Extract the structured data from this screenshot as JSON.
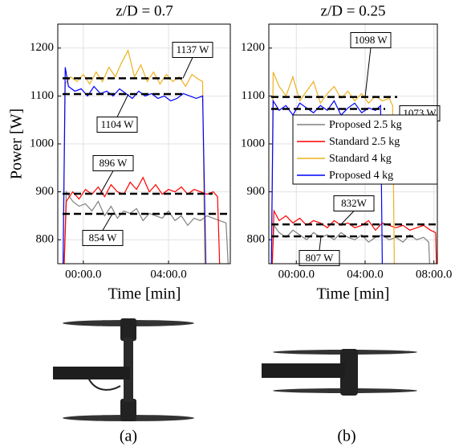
{
  "chart_data": [
    {
      "type": "line",
      "title": "z/D = 0.7",
      "x_label": "Time [min]",
      "y_label": "Power [W]",
      "xlim": [
        -1.2,
        6.9
      ],
      "xticks": [
        {
          "value": 0,
          "label": "00:00.0"
        },
        {
          "value": 4,
          "label": "04:00.0"
        }
      ],
      "ylim": [
        750,
        1250
      ],
      "yticks": [
        800,
        900,
        1000,
        1100,
        1200
      ],
      "grid": true,
      "series": [
        {
          "name": "Proposed 2.5 kg",
          "color": "#808080",
          "x": [
            -0.9,
            -0.8,
            -0.5,
            -0.2,
            0.1,
            0.4,
            0.7,
            1.0,
            1.3,
            1.6,
            1.9,
            2.2,
            2.5,
            2.8,
            3.1,
            3.4,
            3.7,
            4.0,
            4.3,
            4.6,
            4.9,
            5.2,
            5.5,
            5.8,
            6.1,
            6.4,
            6.7,
            6.8
          ],
          "values": [
            750,
            900,
            880,
            870,
            875,
            860,
            880,
            850,
            870,
            845,
            860,
            855,
            865,
            840,
            855,
            850,
            845,
            860,
            840,
            850,
            830,
            845,
            840,
            850,
            845,
            840,
            835,
            750
          ]
        },
        {
          "name": "Standard 2.5 kg",
          "color": "#ff0000",
          "x": [
            -0.9,
            -0.8,
            -0.5,
            -0.2,
            0.1,
            0.4,
            0.7,
            1.0,
            1.3,
            1.6,
            1.9,
            2.2,
            2.5,
            2.8,
            3.1,
            3.4,
            3.7,
            4.0,
            4.3,
            4.6,
            4.9,
            5.2,
            5.5,
            5.8,
            6.1,
            6.3,
            6.4
          ],
          "values": [
            750,
            880,
            900,
            885,
            905,
            895,
            910,
            890,
            915,
            900,
            895,
            920,
            905,
            930,
            900,
            915,
            895,
            905,
            900,
            910,
            895,
            905,
            900,
            895,
            900,
            890,
            750
          ]
        },
        {
          "name": "Standard 4 kg",
          "color": "#edb120",
          "x": [
            -0.95,
            -0.85,
            -0.6,
            -0.3,
            0,
            0.3,
            0.6,
            0.9,
            1.2,
            1.5,
            1.8,
            2.1,
            2.4,
            2.7,
            3.0,
            3.3,
            3.6,
            3.9,
            4.2,
            4.5,
            4.8,
            5.1,
            5.4,
            5.6,
            5.7
          ],
          "values": [
            750,
            1125,
            1140,
            1130,
            1145,
            1125,
            1150,
            1130,
            1160,
            1140,
            1170,
            1195,
            1140,
            1165,
            1130,
            1150,
            1125,
            1145,
            1130,
            1140,
            1120,
            1145,
            1135,
            1130,
            750
          ]
        },
        {
          "name": "Proposed 4 kg",
          "color": "#0000ff",
          "x": [
            -0.95,
            -0.85,
            -0.7,
            -0.4,
            -0.1,
            0.2,
            0.5,
            0.8,
            1.1,
            1.4,
            1.7,
            2.0,
            2.3,
            2.6,
            2.9,
            3.2,
            3.5,
            3.8,
            4.1,
            4.4,
            4.7,
            5.0,
            5.3,
            5.6,
            5.75
          ],
          "values": [
            750,
            1160,
            1120,
            1110,
            1115,
            1100,
            1120,
            1105,
            1110,
            1100,
            1115,
            1105,
            1095,
            1110,
            1100,
            1105,
            1095,
            1100,
            1090,
            1095,
            1105,
            1100,
            1095,
            1100,
            750
          ]
        }
      ],
      "annotations": [
        {
          "text": "1137 W",
          "value": 1137
        },
        {
          "text": "1104 W",
          "value": 1104
        },
        {
          "text": "896 W",
          "value": 896
        },
        {
          "text": "854 W",
          "value": 854
        }
      ]
    },
    {
      "type": "line",
      "title": "z/D = 0.25",
      "x_label": "Time [min]",
      "xlim": [
        -1.6,
        8.2
      ],
      "xticks": [
        {
          "value": 0,
          "label": "00:00.0"
        },
        {
          "value": 4,
          "label": "04:00.0"
        },
        {
          "value": 8,
          "label": "08:00.0"
        }
      ],
      "ylim": [
        750,
        1250
      ],
      "yticks": [
        800,
        900,
        1000,
        1100,
        1200
      ],
      "grid": true,
      "legend": "center right",
      "series": [
        {
          "name": "Proposed 2.5 kg",
          "color": "#808080",
          "x": [
            -1.4,
            -1.3,
            -1.0,
            -0.6,
            -0.2,
            0.2,
            0.6,
            1.0,
            1.4,
            1.8,
            2.2,
            2.6,
            3.0,
            3.4,
            3.8,
            4.2,
            4.6,
            5.0,
            5.4,
            5.8,
            6.2,
            6.6,
            7.0,
            7.4,
            7.7,
            7.75
          ],
          "values": [
            750,
            830,
            815,
            805,
            820,
            810,
            800,
            815,
            805,
            810,
            800,
            815,
            805,
            800,
            810,
            795,
            805,
            810,
            800,
            805,
            795,
            810,
            800,
            805,
            795,
            750
          ]
        },
        {
          "name": "Standard 2.5 kg",
          "color": "#ff0000",
          "x": [
            -1.4,
            -1.3,
            -1.0,
            -0.6,
            -0.2,
            0.2,
            0.6,
            1.0,
            1.4,
            1.8,
            2.2,
            2.6,
            3.0,
            3.4,
            3.8,
            4.2,
            4.6,
            5.0,
            5.4,
            5.8,
            6.2,
            6.6,
            7.0,
            7.4,
            7.8,
            8.1,
            8.15
          ],
          "values": [
            750,
            860,
            840,
            850,
            835,
            845,
            830,
            840,
            835,
            825,
            840,
            830,
            835,
            825,
            830,
            840,
            820,
            835,
            830,
            825,
            830,
            820,
            825,
            830,
            820,
            815,
            750
          ]
        },
        {
          "name": "Standard 4 kg",
          "color": "#edb120",
          "x": [
            -1.45,
            -1.35,
            -1.0,
            -0.6,
            -0.2,
            0.2,
            0.6,
            1.0,
            1.4,
            1.8,
            2.2,
            2.6,
            3.0,
            3.4,
            3.8,
            4.2,
            4.6,
            5.0,
            5.4,
            5.6,
            5.7
          ],
          "values": [
            750,
            1150,
            1120,
            1100,
            1140,
            1090,
            1110,
            1130,
            1085,
            1105,
            1120,
            1095,
            1110,
            1090,
            1105,
            1085,
            1100,
            1090,
            1095,
            1080,
            750
          ]
        },
        {
          "name": "Proposed 4 kg",
          "color": "#0000ff",
          "x": [
            -1.45,
            -1.35,
            -1.0,
            -0.6,
            -0.2,
            0.2,
            0.6,
            1.0,
            1.4,
            1.8,
            2.2,
            2.6,
            3.0,
            3.4,
            3.8,
            4.2,
            4.6,
            4.9,
            5.0
          ],
          "values": [
            750,
            1090,
            1070,
            1080,
            1060,
            1085,
            1075,
            1065,
            1080,
            1070,
            1090,
            1060,
            1075,
            1085,
            1065,
            1075,
            1070,
            1080,
            750
          ]
        }
      ],
      "annotations": [
        {
          "text": "1098 W",
          "value": 1098
        },
        {
          "text": "1073 W",
          "value": 1073
        },
        {
          "text": "832W",
          "value": 832
        },
        {
          "text": "807 W",
          "value": 807
        }
      ]
    }
  ],
  "figure": {
    "panel_labels": [
      "(a)",
      "(b)"
    ]
  }
}
